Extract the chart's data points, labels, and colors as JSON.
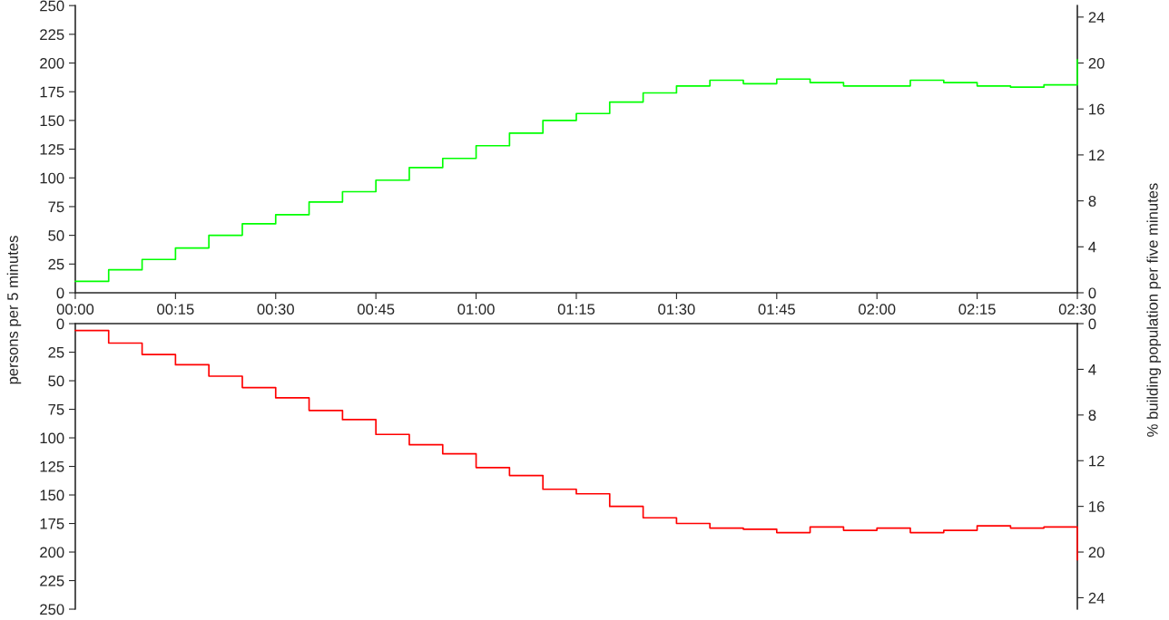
{
  "chart_data": [
    {
      "type": "step",
      "ylabel": "persons per 5 minutes",
      "y2label": "% building population per five minutes",
      "x": [
        0,
        0.0833,
        0.1667,
        0.25,
        0.3333,
        0.4167,
        0.5,
        0.5833,
        0.6667,
        0.75,
        0.8333,
        0.9167,
        1,
        1.0833,
        1.1667,
        1.25,
        1.3333,
        1.4167,
        1.5,
        1.5833,
        1.6667,
        1.75,
        1.8333,
        1.9167,
        2,
        2.0833,
        2.1667,
        2.25,
        2.3333,
        2.4167,
        2.5
      ],
      "series": [
        {
          "color": "#00ff00",
          "values": [
            10,
            20,
            29,
            39,
            50,
            60,
            68,
            79,
            88,
            98,
            109,
            117,
            128,
            139,
            150,
            156,
            166,
            174,
            180,
            185,
            182,
            186,
            183,
            180,
            180,
            185,
            183,
            180,
            179,
            181,
            203
          ]
        }
      ],
      "xlim": [
        0,
        2.5
      ],
      "xticks": [
        {
          "value": 0,
          "label": "00:00"
        },
        {
          "value": 0.25,
          "label": "00:15"
        },
        {
          "value": 0.5,
          "label": "00:30"
        },
        {
          "value": 0.75,
          "label": "00:45"
        },
        {
          "value": 1,
          "label": "01:00"
        },
        {
          "value": 1.25,
          "label": "01:15"
        },
        {
          "value": 1.5,
          "label": "01:30"
        },
        {
          "value": 1.75,
          "label": "01:45"
        },
        {
          "value": 2,
          "label": "02:00"
        },
        {
          "value": 2.25,
          "label": "02:15"
        },
        {
          "value": 2.5,
          "label": "02:30"
        }
      ],
      "ylim": [
        0,
        250
      ],
      "yticks": [
        0,
        25,
        50,
        75,
        100,
        125,
        150,
        175,
        200,
        225,
        250
      ],
      "y2lim": [
        0,
        25
      ],
      "y2ticks": [
        0,
        4,
        8,
        12,
        16,
        20,
        24
      ],
      "grid": false
    },
    {
      "type": "step",
      "x": [
        0,
        0.0833,
        0.1667,
        0.25,
        0.3333,
        0.4167,
        0.5,
        0.5833,
        0.6667,
        0.75,
        0.8333,
        0.9167,
        1,
        1.0833,
        1.1667,
        1.25,
        1.3333,
        1.4167,
        1.5,
        1.5833,
        1.6667,
        1.75,
        1.8333,
        1.9167,
        2,
        2.0833,
        2.1667,
        2.25,
        2.3333,
        2.4167,
        2.5
      ],
      "series": [
        {
          "color": "#ff0000",
          "values": [
            6,
            17,
            27,
            36,
            46,
            56,
            65,
            76,
            84,
            97,
            106,
            114,
            126,
            133,
            145,
            149,
            160,
            170,
            175,
            179,
            180,
            183,
            178,
            181,
            179,
            183,
            181,
            177,
            179,
            178,
            207
          ]
        }
      ],
      "xlim": [
        0,
        2.5
      ],
      "ylim": [
        250,
        0
      ],
      "yticks": [
        0,
        25,
        50,
        75,
        100,
        125,
        150,
        175,
        200,
        225,
        250
      ],
      "y2lim": [
        25,
        0
      ],
      "y2ticks": [
        0,
        4,
        8,
        12,
        16,
        20,
        24
      ],
      "tick_labels": "y",
      "grid": false
    }
  ]
}
